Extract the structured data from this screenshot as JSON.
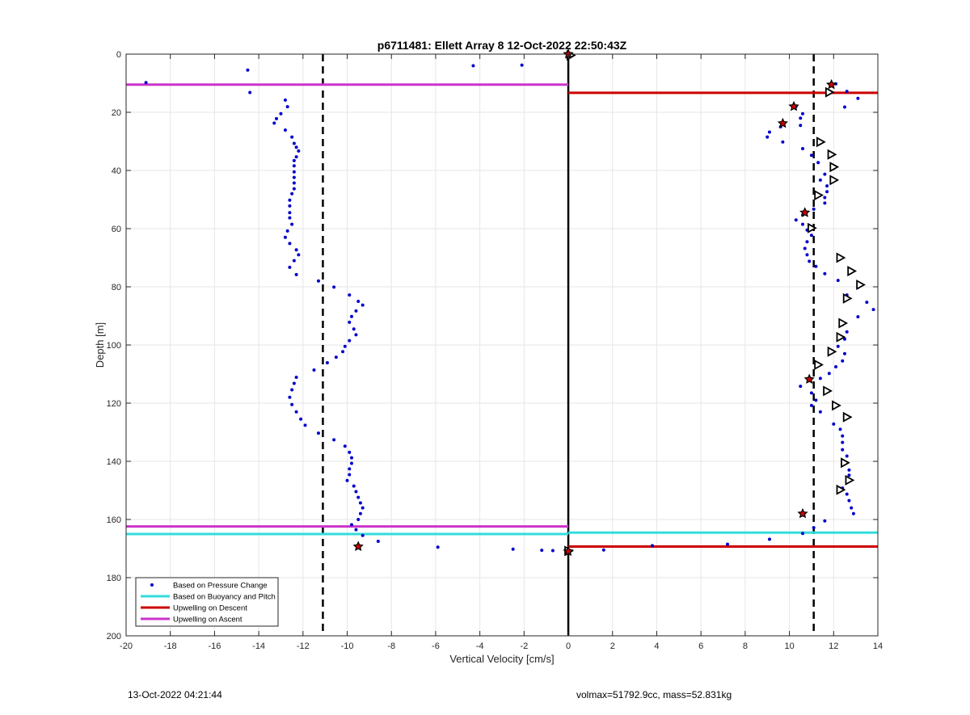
{
  "chart_data": {
    "type": "scatter",
    "title": "p6711481: Ellett Array 8 12-Oct-2022 22:50:43Z",
    "xlabel": "Vertical Velocity [cm/s]",
    "ylabel": "Depth [m]",
    "xlim": [
      -20,
      14
    ],
    "ylim": [
      0,
      200
    ],
    "y_reversed": true,
    "grid": true,
    "xticks": [
      -20,
      -18,
      -16,
      -14,
      -12,
      -10,
      -8,
      -6,
      -4,
      -2,
      0,
      2,
      4,
      6,
      8,
      10,
      12,
      14
    ],
    "yticks": [
      0,
      20,
      40,
      60,
      80,
      100,
      120,
      140,
      160,
      180,
      200
    ],
    "legend_position": "bottom-left",
    "legend": [
      {
        "label": "Based on Pressure Change",
        "color": "#0000cc",
        "style": "dot"
      },
      {
        "label": "Based on Buoyancy and Pitch",
        "color": "#33dddd",
        "style": "line"
      },
      {
        "label": "Upwelling on Descent",
        "color": "#cc0000",
        "style": "line"
      },
      {
        "label": "Upwelling on Ascent",
        "color": "#cc33cc",
        "style": "line"
      }
    ],
    "reference_lines": {
      "vertical_solid": [
        0
      ],
      "vertical_dashed": [
        -11.1,
        11.1
      ]
    },
    "series": [
      {
        "name": "Based on Pressure Change",
        "color": "#0000cc",
        "points": [
          [
            -19.1,
            9.8
          ],
          [
            -14.5,
            5.5
          ],
          [
            -14.4,
            13.2
          ],
          [
            -4.3,
            4.0
          ],
          [
            -2.1,
            3.8
          ],
          [
            -12.8,
            15.8
          ],
          [
            -12.7,
            18.1
          ],
          [
            -13.0,
            20.5
          ],
          [
            -13.2,
            22.2
          ],
          [
            -13.3,
            23.7
          ],
          [
            -12.8,
            26.1
          ],
          [
            -12.5,
            28.5
          ],
          [
            -12.4,
            30.7
          ],
          [
            -12.3,
            32.0
          ],
          [
            -12.2,
            33.3
          ],
          [
            -12.3,
            35.3
          ],
          [
            -12.4,
            36.6
          ],
          [
            -12.4,
            38.4
          ],
          [
            -12.4,
            40.5
          ],
          [
            -12.4,
            42.4
          ],
          [
            -12.4,
            44.3
          ],
          [
            -12.4,
            46.3
          ],
          [
            -12.5,
            48.0
          ],
          [
            -12.6,
            50.2
          ],
          [
            -12.6,
            52.2
          ],
          [
            -12.6,
            54.5
          ],
          [
            -12.6,
            56.3
          ],
          [
            -12.5,
            58.5
          ],
          [
            -12.7,
            60.8
          ],
          [
            -12.8,
            63.0
          ],
          [
            -12.6,
            65.1
          ],
          [
            -12.3,
            67.3
          ],
          [
            -12.2,
            69.0
          ],
          [
            -12.4,
            71.0
          ],
          [
            -12.6,
            73.3
          ],
          [
            -12.3,
            75.8
          ],
          [
            -11.3,
            78.0
          ],
          [
            -10.6,
            80.1
          ],
          [
            -9.9,
            82.8
          ],
          [
            -9.5,
            85.0
          ],
          [
            -9.3,
            86.3
          ],
          [
            -9.6,
            88.3
          ],
          [
            -9.8,
            90.2
          ],
          [
            -9.9,
            92.2
          ],
          [
            -9.7,
            94.5
          ],
          [
            -9.6,
            96.5
          ],
          [
            -9.9,
            98.5
          ],
          [
            -10.1,
            100.5
          ],
          [
            -10.2,
            102.3
          ],
          [
            -10.5,
            104.2
          ],
          [
            -10.9,
            106.1
          ],
          [
            -11.5,
            108.6
          ],
          [
            -12.3,
            111.1
          ],
          [
            -12.4,
            113.2
          ],
          [
            -12.5,
            115.4
          ],
          [
            -12.6,
            118.0
          ],
          [
            -12.5,
            120.5
          ],
          [
            -12.3,
            123.0
          ],
          [
            -12.1,
            125.5
          ],
          [
            -11.9,
            127.6
          ],
          [
            -11.3,
            130.3
          ],
          [
            -10.6,
            132.6
          ],
          [
            -10.1,
            134.8
          ],
          [
            -9.9,
            136.9
          ],
          [
            -9.8,
            138.8
          ],
          [
            -9.8,
            140.7
          ],
          [
            -9.9,
            142.6
          ],
          [
            -9.9,
            144.6
          ],
          [
            -10.0,
            146.6
          ],
          [
            -9.7,
            148.5
          ],
          [
            -9.6,
            150.4
          ],
          [
            -9.5,
            152.4
          ],
          [
            -9.4,
            154.3
          ],
          [
            -9.3,
            156.0
          ],
          [
            -9.4,
            158.0
          ],
          [
            -9.5,
            160.0
          ],
          [
            -9.8,
            161.8
          ],
          [
            -9.6,
            163.5
          ],
          [
            -9.3,
            165.5
          ],
          [
            -8.6,
            167.5
          ],
          [
            -5.9,
            169.5
          ],
          [
            -2.5,
            170.2
          ],
          [
            -1.2,
            170.6
          ],
          [
            -0.7,
            170.7
          ],
          [
            1.6,
            170.5
          ],
          [
            3.8,
            169.0
          ],
          [
            7.2,
            168.5
          ],
          [
            9.1,
            166.8
          ],
          [
            10.6,
            164.8
          ],
          [
            11.1,
            162.8
          ],
          [
            11.6,
            160.5
          ],
          [
            12.9,
            158.0
          ],
          [
            12.8,
            156.0
          ],
          [
            12.7,
            153.5
          ],
          [
            12.6,
            151.3
          ],
          [
            12.4,
            149.2
          ],
          [
            12.6,
            147.0
          ],
          [
            12.7,
            144.8
          ],
          [
            12.7,
            143.0
          ],
          [
            12.5,
            140.5
          ],
          [
            12.6,
            138.2
          ],
          [
            12.4,
            136.0
          ],
          [
            12.4,
            133.5
          ],
          [
            12.4,
            131.3
          ],
          [
            12.3,
            129.0
          ],
          [
            12.0,
            127.2
          ],
          [
            11.4,
            123.0
          ],
          [
            11.0,
            120.8
          ],
          [
            11.2,
            119.0
          ],
          [
            11.0,
            116.5
          ],
          [
            10.5,
            114.2
          ],
          [
            11.4,
            111.5
          ],
          [
            11.8,
            109.8
          ],
          [
            12.1,
            107.5
          ],
          [
            12.4,
            105.5
          ],
          [
            12.5,
            103.0
          ],
          [
            12.2,
            100.5
          ],
          [
            12.5,
            98.0
          ],
          [
            12.6,
            95.5
          ],
          [
            12.4,
            93.0
          ],
          [
            13.1,
            90.3
          ],
          [
            13.8,
            87.8
          ],
          [
            13.5,
            85.3
          ],
          [
            12.6,
            82.8
          ],
          [
            13.1,
            80.2
          ],
          [
            12.2,
            77.8
          ],
          [
            11.6,
            75.5
          ],
          [
            11.2,
            73.0
          ],
          [
            10.9,
            71.2
          ],
          [
            10.8,
            69.0
          ],
          [
            10.7,
            66.8
          ],
          [
            10.8,
            64.5
          ],
          [
            11.0,
            62.3
          ],
          [
            10.8,
            60.5
          ],
          [
            10.6,
            58.5
          ],
          [
            10.3,
            57.0
          ],
          [
            10.6,
            55.3
          ],
          [
            11.1,
            53.3
          ],
          [
            11.6,
            51.2
          ],
          [
            11.6,
            49.3
          ],
          [
            11.7,
            47.3
          ],
          [
            11.7,
            45.3
          ],
          [
            11.4,
            43.3
          ],
          [
            11.6,
            41.3
          ],
          [
            12.0,
            39.3
          ],
          [
            11.3,
            37.3
          ],
          [
            11.0,
            34.8
          ],
          [
            10.6,
            32.5
          ],
          [
            9.7,
            30.2
          ],
          [
            9.0,
            28.5
          ],
          [
            9.1,
            26.8
          ],
          [
            9.6,
            25.0
          ],
          [
            10.5,
            24.5
          ],
          [
            10.5,
            22.0
          ],
          [
            10.6,
            20.5
          ],
          [
            10.3,
            18.0
          ],
          [
            12.5,
            18.2
          ],
          [
            13.1,
            15.2
          ],
          [
            12.6,
            12.8
          ],
          [
            11.9,
            10.8
          ],
          [
            12.1,
            10.2
          ]
        ]
      },
      {
        "name": "Based on Buoyancy and Pitch",
        "color": "#33dddd",
        "segments": [
          {
            "x": [
              -20,
              0
            ],
            "y": 165.0
          },
          {
            "x": [
              0,
              14
            ],
            "y": 164.5
          }
        ]
      },
      {
        "name": "Upwelling on Descent",
        "color": "#cc0000",
        "segments": [
          {
            "x": [
              0,
              14
            ],
            "y": 13.3
          },
          {
            "x": [
              0,
              14
            ],
            "y": 169.3
          }
        ]
      },
      {
        "name": "Upwelling on Ascent",
        "color": "#cc33cc",
        "segments": [
          {
            "x": [
              -20,
              0
            ],
            "y": 10.5
          },
          {
            "x": [
              -20,
              0
            ],
            "y": 162.4
          }
        ]
      },
      {
        "name": "hollow-triangle-markers",
        "color": "#000000",
        "points": [
          [
            11.4,
            30.2
          ],
          [
            11.9,
            34.5
          ],
          [
            12.0,
            38.8
          ],
          [
            12.0,
            43.3
          ],
          [
            11.3,
            48.5
          ],
          [
            11.0,
            59.8
          ],
          [
            12.3,
            70.0
          ],
          [
            12.8,
            74.6
          ],
          [
            13.2,
            79.3
          ],
          [
            12.6,
            84.0
          ],
          [
            12.4,
            92.5
          ],
          [
            12.3,
            97.3
          ],
          [
            11.9,
            102.3
          ],
          [
            11.3,
            106.8
          ],
          [
            11.7,
            115.8
          ],
          [
            12.1,
            120.8
          ],
          [
            12.6,
            124.8
          ],
          [
            12.5,
            140.5
          ],
          [
            12.7,
            146.5
          ],
          [
            12.3,
            149.8
          ],
          [
            11.8,
            13.1
          ],
          [
            0.1,
            0.4
          ],
          [
            0.0,
            170.8
          ]
        ]
      },
      {
        "name": "red-star-markers",
        "color": "#cc0000",
        "points": [
          [
            -9.5,
            169.3
          ],
          [
            0.0,
            0.0
          ],
          [
            0.0,
            171.0
          ],
          [
            11.9,
            10.5
          ],
          [
            10.2,
            18.0
          ],
          [
            9.7,
            23.8
          ],
          [
            10.7,
            54.5
          ],
          [
            10.9,
            111.8
          ],
          [
            10.6,
            158.0
          ]
        ]
      }
    ]
  },
  "footer": {
    "left": "13-Oct-2022 04:21:44",
    "right": "volmax=51792.9cc, mass=52.831kg"
  }
}
